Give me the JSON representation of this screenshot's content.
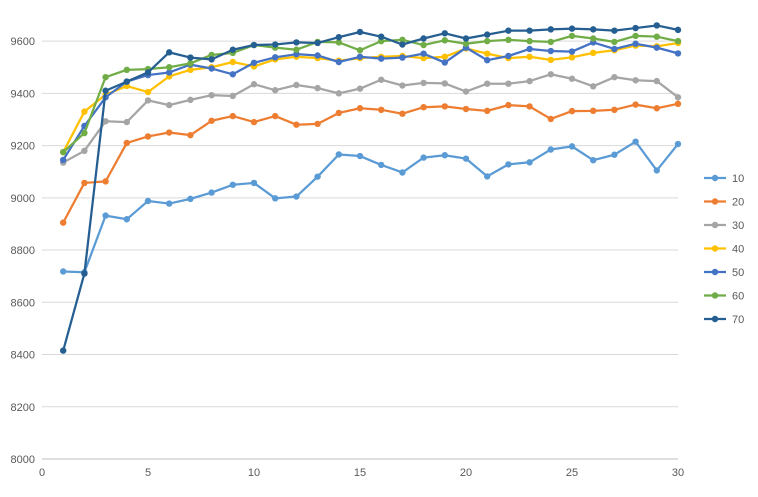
{
  "chart_data": {
    "type": "line",
    "title": "",
    "xlabel": "",
    "ylabel": "",
    "xlim": [
      0,
      30
    ],
    "ylim": [
      8000,
      9700
    ],
    "x_ticks": [
      0,
      5,
      10,
      15,
      20,
      25,
      30
    ],
    "y_ticks": [
      8000,
      8200,
      8400,
      8600,
      8800,
      9000,
      9200,
      9400,
      9600
    ],
    "grid": "horizontal",
    "legend_position": "right",
    "x": [
      1,
      2,
      3,
      4,
      5,
      6,
      7,
      8,
      9,
      10,
      11,
      12,
      13,
      14,
      15,
      16,
      17,
      18,
      19,
      20,
      21,
      22,
      23,
      24,
      25,
      26,
      27,
      28,
      29,
      30
    ],
    "series": [
      {
        "name": "10",
        "color": "#5B9BD5",
        "values": [
          8718,
          8715,
          8932,
          8918,
          8988,
          8978,
          8996,
          9020,
          9050,
          9057,
          8998,
          9005,
          9081,
          9166,
          9160,
          9126,
          9097,
          9154,
          9163,
          9150,
          9082,
          9128,
          9136,
          9185,
          9197,
          9144,
          9165,
          9215,
          9105,
          9206
        ]
      },
      {
        "name": "20",
        "color": "#ED7D31",
        "values": [
          8905,
          9057,
          9063,
          9210,
          9235,
          9250,
          9240,
          9295,
          9313,
          9290,
          9313,
          9280,
          9283,
          9325,
          9343,
          9337,
          9322,
          9347,
          9350,
          9340,
          9333,
          9355,
          9350,
          9302,
          9332,
          9333,
          9337,
          9357,
          9343,
          9360
        ]
      },
      {
        "name": "30",
        "color": "#A5A5A5",
        "values": [
          9135,
          9180,
          9293,
          9290,
          9373,
          9355,
          9375,
          9393,
          9390,
          9435,
          9412,
          9432,
          9420,
          9400,
          9418,
          9452,
          9430,
          9440,
          9438,
          9407,
          9437,
          9437,
          9447,
          9473,
          9456,
          9427,
          9462,
          9450,
          9447,
          9385
        ]
      },
      {
        "name": "40",
        "color": "#FFC000",
        "values": [
          9175,
          9330,
          9395,
          9428,
          9405,
          9465,
          9490,
          9500,
          9520,
          9503,
          9530,
          9540,
          9535,
          9525,
          9535,
          9540,
          9543,
          9535,
          9540,
          9572,
          9552,
          9535,
          9540,
          9528,
          9538,
          9555,
          9565,
          9583,
          9580,
          9593
        ]
      },
      {
        "name": "50",
        "color": "#4472C4",
        "values": [
          9145,
          9275,
          9385,
          9445,
          9470,
          9480,
          9510,
          9495,
          9473,
          9517,
          9538,
          9550,
          9545,
          9520,
          9540,
          9533,
          9537,
          9552,
          9518,
          9575,
          9527,
          9543,
          9570,
          9562,
          9560,
          9595,
          9570,
          9590,
          9575,
          9553
        ]
      },
      {
        "name": "60",
        "color": "#70AD47",
        "values": [
          9175,
          9248,
          9462,
          9490,
          9493,
          9500,
          9515,
          9547,
          9555,
          9585,
          9575,
          9567,
          9597,
          9595,
          9565,
          9600,
          9605,
          9585,
          9603,
          9590,
          9600,
          9605,
          9600,
          9597,
          9620,
          9610,
          9597,
          9620,
          9617,
          9600
        ]
      },
      {
        "name": "70",
        "color": "#255E91",
        "values": [
          8415,
          8710,
          9410,
          9445,
          9480,
          9557,
          9537,
          9530,
          9567,
          9585,
          9587,
          9595,
          9593,
          9615,
          9635,
          9617,
          9587,
          9610,
          9630,
          9610,
          9625,
          9640,
          9640,
          9645,
          9648,
          9645,
          9640,
          9650,
          9660,
          9643
        ]
      }
    ]
  }
}
